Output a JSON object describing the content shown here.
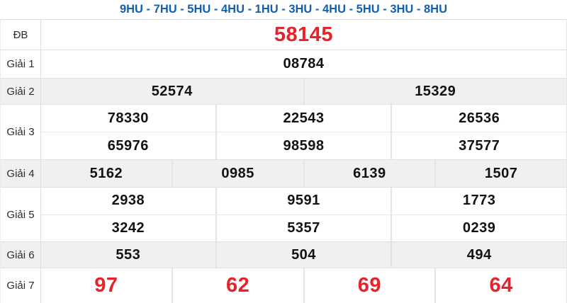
{
  "header": {
    "title": "9HU - 7HU - 5HU - 4HU - 1HU - 3HU - 4HU - 5HU - 3HU - 8HU"
  },
  "colors": {
    "accent_blue": "#1061b0",
    "accent_red": "#e8222a",
    "stripe_gray": "#f0f0f0",
    "border_gray": "#e0e0e0"
  },
  "table": {
    "rows": [
      {
        "id": "db",
        "label": "ĐB",
        "highlight": true,
        "groups": [
          [
            "58145"
          ]
        ]
      },
      {
        "id": "giai-1",
        "label": "Giải 1",
        "highlight": false,
        "groups": [
          [
            "08784"
          ]
        ]
      },
      {
        "id": "giai-2",
        "label": "Giải 2",
        "highlight": false,
        "groups": [
          [
            "52574",
            "15329"
          ]
        ]
      },
      {
        "id": "giai-3",
        "label": "Giải 3",
        "highlight": false,
        "groups": [
          [
            "78330",
            "22543",
            "26536"
          ],
          [
            "65976",
            "98598",
            "37577"
          ]
        ]
      },
      {
        "id": "giai-4",
        "label": "Giải 4",
        "highlight": false,
        "groups": [
          [
            "5162",
            "0985",
            "6139",
            "1507"
          ]
        ]
      },
      {
        "id": "giai-5",
        "label": "Giải 5",
        "highlight": false,
        "groups": [
          [
            "2938",
            "9591",
            "1773"
          ],
          [
            "3242",
            "5357",
            "0239"
          ]
        ]
      },
      {
        "id": "giai-6",
        "label": "Giải 6",
        "highlight": false,
        "groups": [
          [
            "553",
            "504",
            "494"
          ]
        ]
      },
      {
        "id": "giai-7",
        "label": "Giải 7",
        "highlight": true,
        "groups": [
          [
            "97",
            "62",
            "69",
            "64"
          ]
        ]
      }
    ]
  }
}
